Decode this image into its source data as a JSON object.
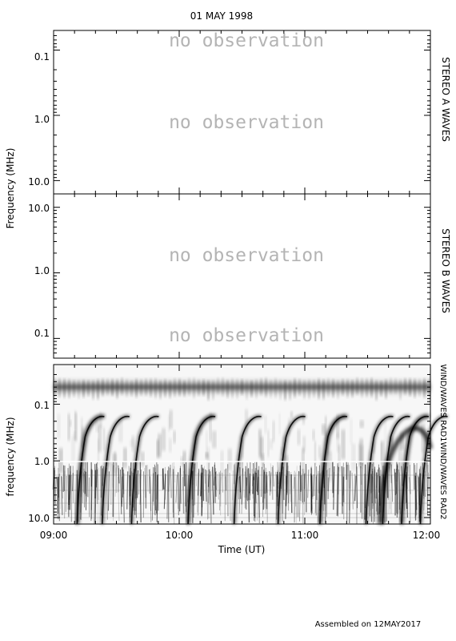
{
  "chart_data": {
    "type": "heatmap",
    "title": "01 MAY 1998",
    "footer": "Assembled on 12MAY2017",
    "xlabel": "Time (UT)",
    "x_ticks": [
      "09:00",
      "10:00",
      "11:00",
      "12:00"
    ],
    "panels": [
      {
        "instrument": "STEREO A WAVES",
        "ylabel": "Frequency (MHz)",
        "y_ticks": [
          "0.1",
          "1.0",
          "10.0"
        ],
        "y_scale": "log",
        "y_range_mhz": [
          0.05,
          16
        ],
        "status": [
          "no observation",
          "no observation"
        ]
      },
      {
        "instrument": "STEREO B WAVES",
        "ylabel": "Frequency (MHz)",
        "y_ticks": [
          "10.0",
          "1.0",
          "0.1"
        ],
        "y_scale": "log",
        "y_range_mhz": [
          16,
          0.05
        ],
        "status": [
          "no observation",
          "no observation"
        ]
      },
      {
        "instrument_top": "WIND/WAVES RAD1",
        "instrument_bottom": "WIND/WAVES RAD2",
        "ylabel": "frequency (MHz)",
        "y_ticks": [
          "0.1",
          "1.0",
          "10.0"
        ],
        "y_scale": "log",
        "y_range_mhz": [
          0.02,
          13
        ],
        "dynamic_spectrum": true,
        "features": {
          "continuum_band_mhz": 0.04,
          "bursts_ut": [
            "09:12",
            "09:24",
            "09:38",
            "10:05",
            "10:27",
            "10:48",
            "11:08",
            "11:30",
            "11:38",
            "11:47",
            "11:56"
          ]
        }
      }
    ]
  }
}
